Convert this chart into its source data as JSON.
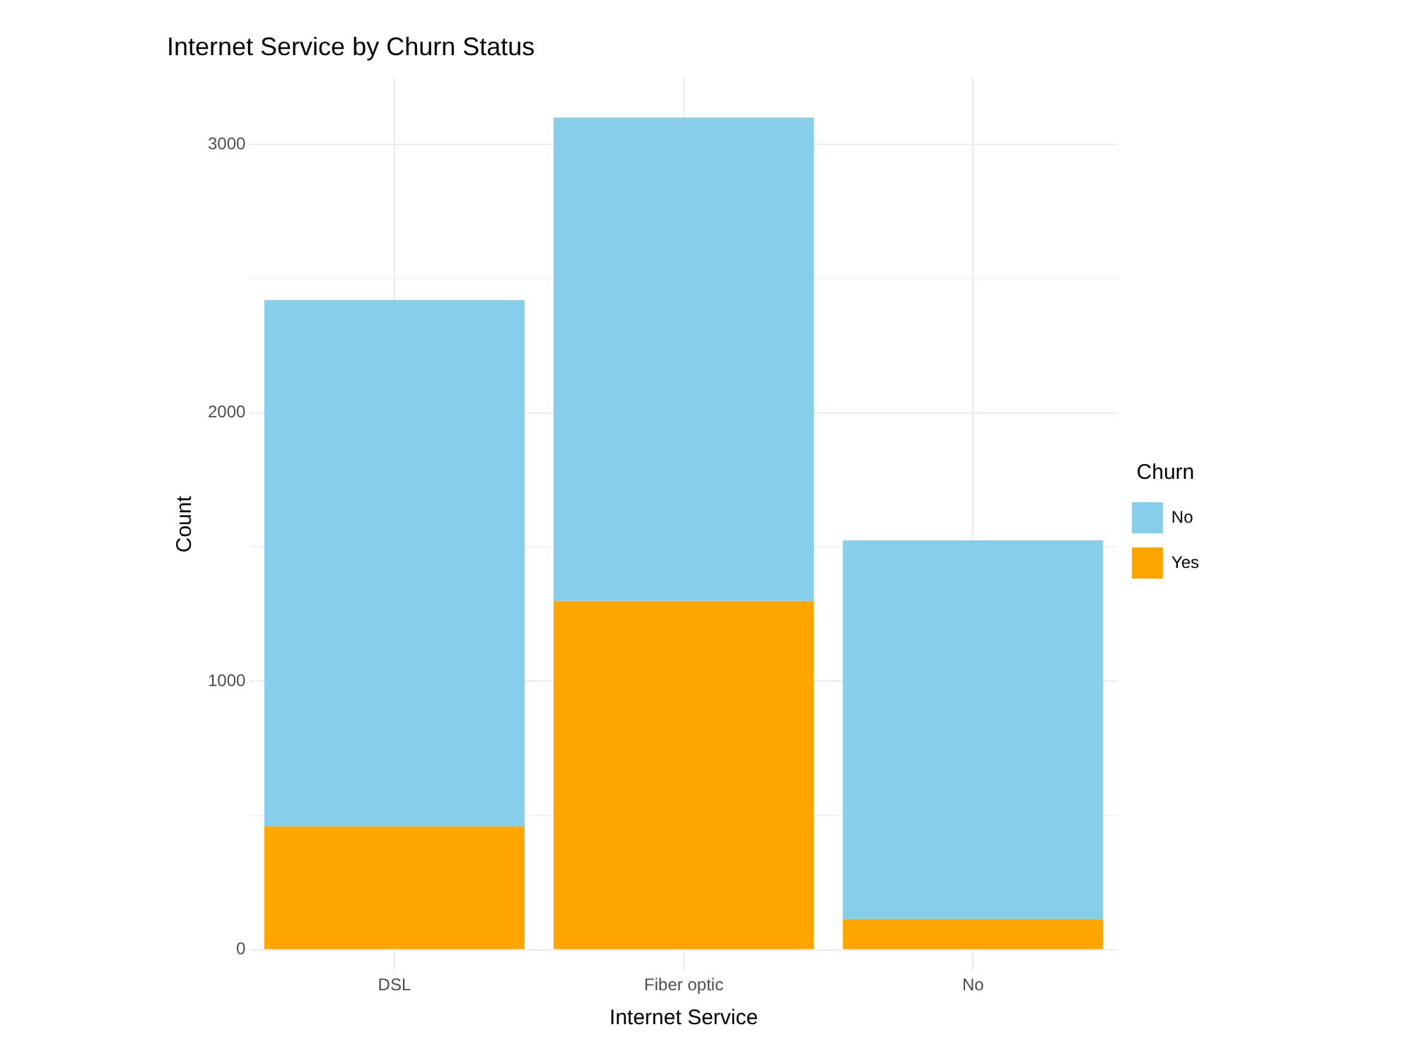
{
  "chart_data": {
    "type": "bar",
    "title": "Internet Service by Churn Status",
    "xlabel": "Internet Service",
    "ylabel": "Count",
    "legend_title": "Churn",
    "categories": [
      "DSL",
      "Fiber optic",
      "No"
    ],
    "stacked": true,
    "series": [
      {
        "name": "Yes",
        "color": "#ffa500",
        "values": [
          460,
          1300,
          115
        ]
      },
      {
        "name": "No",
        "color": "#87ceeb",
        "values": [
          1960,
          1800,
          1410
        ]
      }
    ],
    "ylim": [
      -80,
      3250
    ],
    "yticks": [
      0,
      {
        "value": 500,
        "label": null
      },
      1000,
      {
        "value": 1500,
        "label": null
      },
      2000,
      {
        "value": 2500,
        "label": null
      },
      3000
    ],
    "grid": true,
    "legend": "right"
  }
}
